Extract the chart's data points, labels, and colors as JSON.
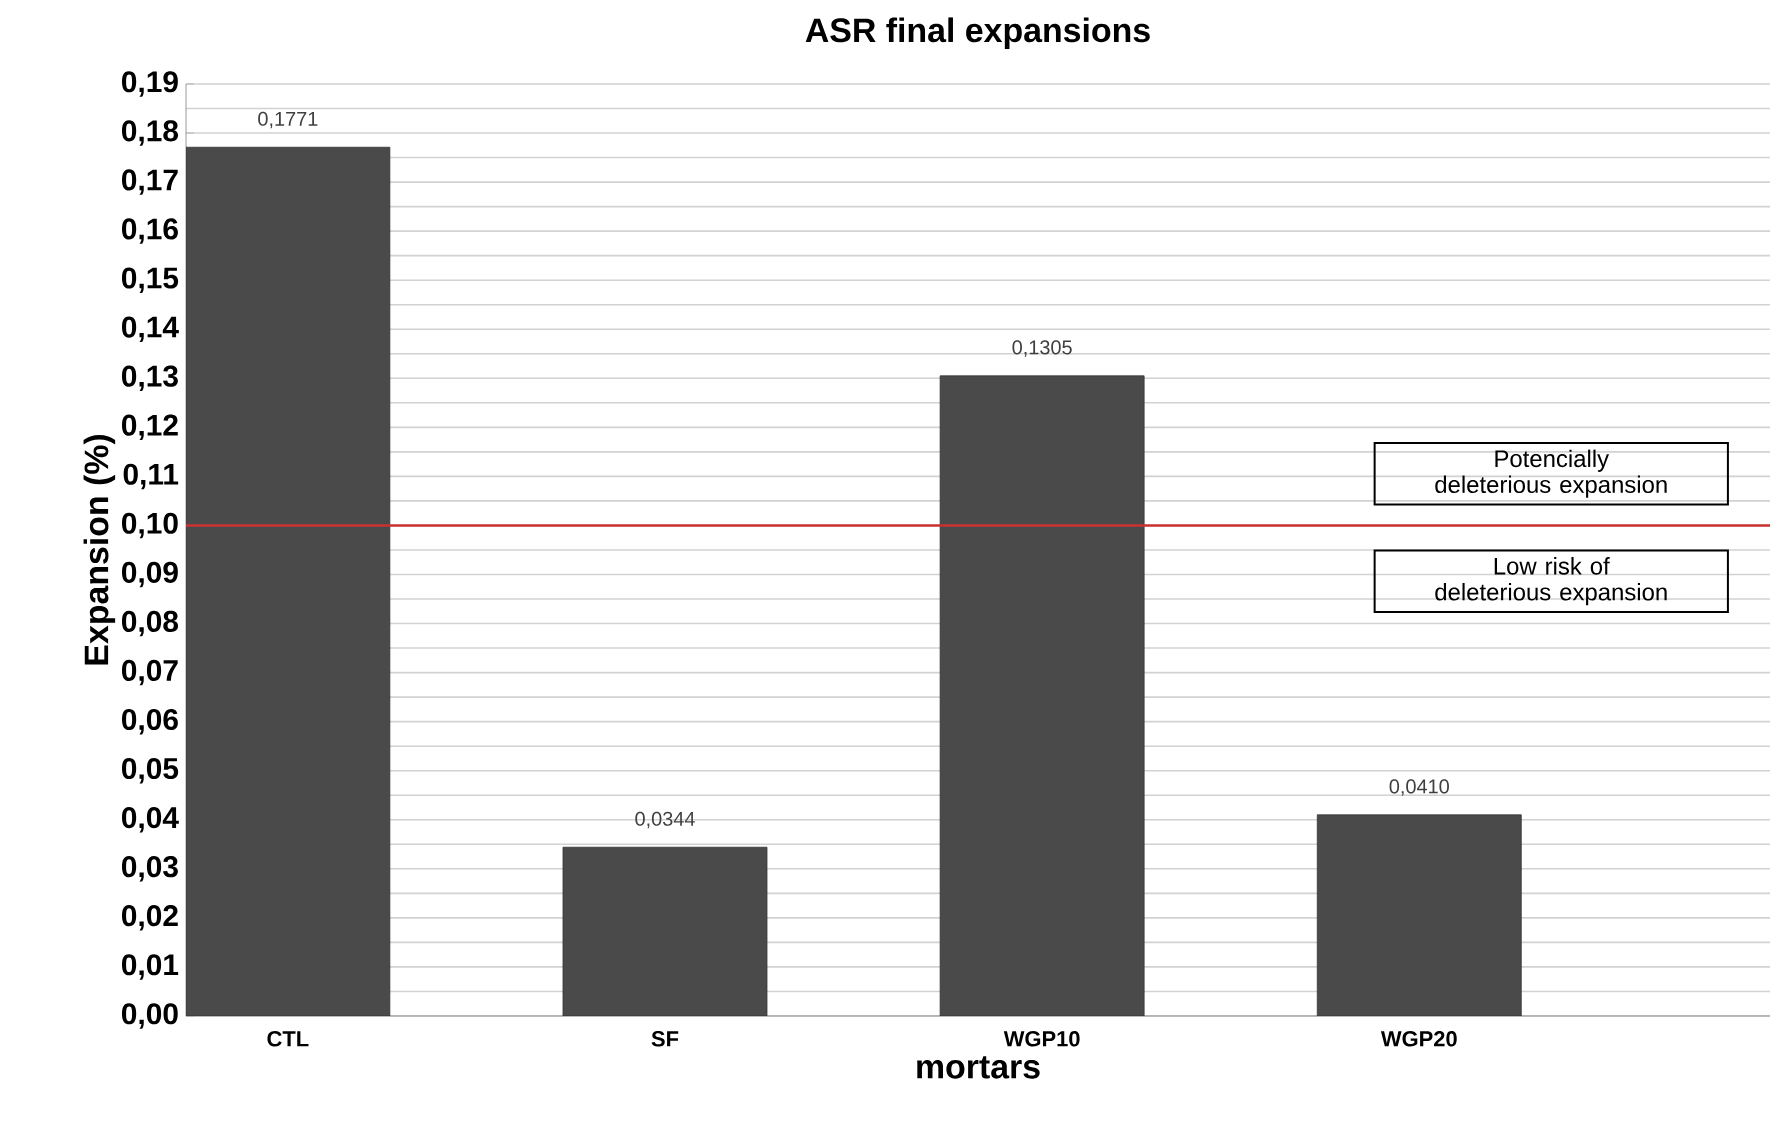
{
  "chart_data": {
    "type": "bar",
    "title": "ASR final expansions",
    "xlabel": "mortars",
    "ylabel": "Expansion (%)",
    "categories": [
      "CTL",
      "SF",
      "WGP10",
      "WGP20"
    ],
    "values": [
      0.1771,
      0.0344,
      0.1305,
      0.041
    ],
    "value_labels": [
      "0,1771",
      "0,0344",
      "0,1305",
      "0,0410"
    ],
    "color": "#4a4a4a",
    "ylim": [
      0,
      0.19
    ],
    "yticks": [
      {
        "value": 0,
        "label": "0,00"
      },
      {
        "value": 0.01,
        "label": "0,01"
      },
      {
        "value": 0.02,
        "label": "0,02"
      },
      {
        "value": 0.03,
        "label": "0,03"
      },
      {
        "value": 0.04,
        "label": "0,04"
      },
      {
        "value": 0.05,
        "label": "0,05"
      },
      {
        "value": 0.06,
        "label": "0,06"
      },
      {
        "value": 0.07,
        "label": "0,07"
      },
      {
        "value": 0.08,
        "label": "0,08"
      },
      {
        "value": 0.09,
        "label": "0,09"
      },
      {
        "value": 0.1,
        "label": "0,10"
      },
      {
        "value": 0.11,
        "label": "0,11"
      },
      {
        "value": 0.12,
        "label": "0,12"
      },
      {
        "value": 0.13,
        "label": "0,13"
      },
      {
        "value": 0.14,
        "label": "0,14"
      },
      {
        "value": 0.15,
        "label": "0,15"
      },
      {
        "value": 0.16,
        "label": "0,16"
      },
      {
        "value": 0.17,
        "label": "0,17"
      },
      {
        "value": 0.18,
        "label": "0,18"
      },
      {
        "value": 0.19,
        "label": "0,19"
      }
    ],
    "ref_lines": [
      {
        "axis": "y",
        "value": 0.1,
        "color": "#c83232"
      }
    ],
    "annotations": [
      "Potencially deleterious expansion",
      "Low risk of deleterious expansion"
    ],
    "grid": "y"
  }
}
